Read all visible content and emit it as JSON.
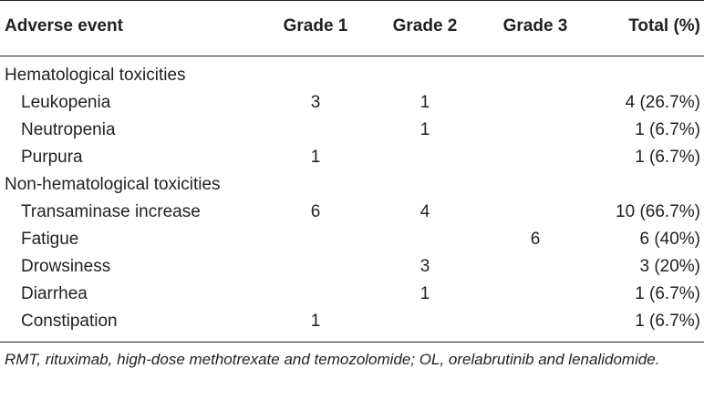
{
  "table": {
    "headers": {
      "event": "Adverse event",
      "grade1": "Grade 1",
      "grade2": "Grade 2",
      "grade3": "Grade 3",
      "total": "Total (%)"
    },
    "groups": [
      {
        "label": "Hematological toxicities",
        "rows": [
          {
            "event": "Leukopenia",
            "grade1": "3",
            "grade2": "1",
            "grade3": "",
            "total": "4 (26.7%)"
          },
          {
            "event": "Neutropenia",
            "grade1": "",
            "grade2": "1",
            "grade3": "",
            "total": "1 (6.7%)"
          },
          {
            "event": "Purpura",
            "grade1": "1",
            "grade2": "",
            "grade3": "",
            "total": "1 (6.7%)"
          }
        ]
      },
      {
        "label": "Non-hematological toxicities",
        "rows": [
          {
            "event": "Transaminase increase",
            "grade1": "6",
            "grade2": "4",
            "grade3": "",
            "total": "10 (66.7%)"
          },
          {
            "event": "Fatigue",
            "grade1": "",
            "grade2": "",
            "grade3": "6",
            "total": "6 (40%)"
          },
          {
            "event": "Drowsiness",
            "grade1": "",
            "grade2": "3",
            "grade3": "",
            "total": "3 (20%)"
          },
          {
            "event": "Diarrhea",
            "grade1": "",
            "grade2": "1",
            "grade3": "",
            "total": "1 (6.7%)"
          },
          {
            "event": "Constipation",
            "grade1": "1",
            "grade2": "",
            "grade3": "",
            "total": "1 (6.7%)"
          }
        ]
      }
    ]
  },
  "footnote": "RMT, rituximab, high-dose methotrexate and temozolomide; OL, orelabrutinib and lenalidomide."
}
